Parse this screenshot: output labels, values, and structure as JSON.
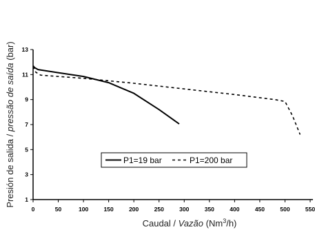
{
  "chart_data": {
    "type": "line",
    "title": "",
    "xlabel": {
      "prefix": "Caudal / ",
      "italic": "Vazão",
      "unit_open": " (Nm",
      "unit_sup": "3",
      "unit_close": "/h)"
    },
    "ylabel": {
      "prefix": "Presión de salida / ",
      "italic": "pressão de saída",
      "suffix": " (bar)"
    },
    "xlim": [
      0,
      550
    ],
    "ylim": [
      1,
      13
    ],
    "x_ticks": [
      0,
      50,
      100,
      150,
      200,
      250,
      300,
      350,
      400,
      450,
      500,
      550
    ],
    "x_tick_labels": [
      "0",
      "50",
      "100",
      "150",
      "200",
      "250",
      "300",
      "350",
      "400",
      "450",
      "500",
      "550"
    ],
    "y_ticks": [
      1,
      3,
      5,
      7,
      9,
      11,
      13
    ],
    "y_tick_labels": [
      "1",
      "3",
      "5",
      "7",
      "9",
      "11",
      "13"
    ],
    "grid": false,
    "legend_position": "bottom-center",
    "series": [
      {
        "name": "P1=19 bar",
        "style": "solid",
        "color": "#000000",
        "x": [
          0,
          3,
          10,
          50,
          100,
          150,
          200,
          250,
          290
        ],
        "y": [
          11.7,
          11.55,
          11.4,
          11.15,
          10.85,
          10.35,
          9.5,
          8.2,
          7.05
        ]
      },
      {
        "name": "P1=200 bar",
        "style": "dashed",
        "color": "#000000",
        "x": [
          0,
          5,
          15,
          50,
          100,
          150,
          200,
          300,
          400,
          480,
          500,
          515,
          530
        ],
        "y": [
          11.65,
          11.2,
          10.95,
          10.85,
          10.7,
          10.5,
          10.3,
          9.85,
          9.4,
          9.0,
          8.85,
          7.7,
          6.2
        ]
      }
    ]
  }
}
